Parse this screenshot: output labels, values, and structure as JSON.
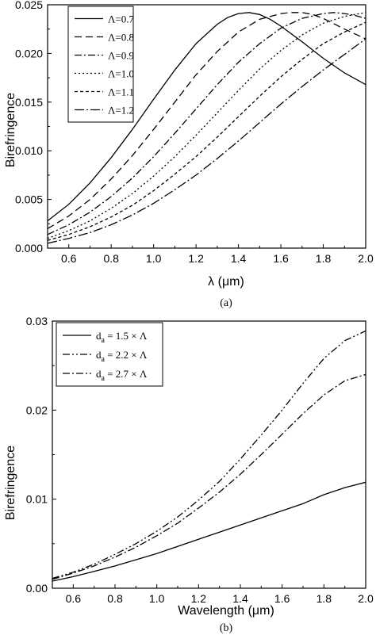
{
  "chart_data": [
    {
      "type": "line",
      "caption": "(a)",
      "xlabel": "λ (μm)",
      "ylabel": "Birefringence",
      "xlim": [
        0.5,
        2.0
      ],
      "ylim": [
        0.0,
        0.025
      ],
      "xticks": [
        "0.6",
        "0.8",
        "1.0",
        "1.2",
        "1.4",
        "1.6",
        "1.8",
        "2.0"
      ],
      "yticks": [
        "0.000",
        "0.005",
        "0.010",
        "0.015",
        "0.020",
        "0.025"
      ],
      "legend_position": "top-left",
      "series": [
        {
          "name": "Λ=0.7",
          "dash": "solid",
          "x": [
            0.5,
            0.6,
            0.7,
            0.8,
            0.9,
            1.0,
            1.1,
            1.2,
            1.3,
            1.35,
            1.4,
            1.45,
            1.5,
            1.55,
            1.6,
            1.7,
            1.8,
            1.9,
            2.0
          ],
          "y": [
            0.0028,
            0.0045,
            0.0067,
            0.0093,
            0.0122,
            0.0153,
            0.0183,
            0.021,
            0.023,
            0.0237,
            0.0241,
            0.0242,
            0.024,
            0.0235,
            0.0228,
            0.0212,
            0.0195,
            0.018,
            0.0168
          ]
        },
        {
          "name": "Λ=0.8",
          "dash": "dash",
          "x": [
            0.5,
            0.6,
            0.7,
            0.8,
            0.9,
            1.0,
            1.1,
            1.2,
            1.3,
            1.4,
            1.5,
            1.6,
            1.65,
            1.7,
            1.75,
            1.8,
            1.9,
            2.0
          ],
          "y": [
            0.002,
            0.0033,
            0.005,
            0.0071,
            0.0095,
            0.0122,
            0.015,
            0.0178,
            0.0202,
            0.0222,
            0.0235,
            0.0241,
            0.0242,
            0.0242,
            0.024,
            0.0236,
            0.0225,
            0.0215
          ]
        },
        {
          "name": "Λ=0.9",
          "dash": "dashdot",
          "x": [
            0.5,
            0.6,
            0.7,
            0.8,
            0.9,
            1.0,
            1.1,
            1.2,
            1.3,
            1.4,
            1.5,
            1.6,
            1.7,
            1.8,
            1.85,
            1.9,
            1.95,
            2.0
          ],
          "y": [
            0.0014,
            0.0024,
            0.0037,
            0.0053,
            0.0072,
            0.0094,
            0.0118,
            0.0143,
            0.0168,
            0.0191,
            0.021,
            0.0226,
            0.0236,
            0.0241,
            0.0242,
            0.0241,
            0.0239,
            0.0236
          ]
        },
        {
          "name": "Λ=1.0",
          "dash": "dot",
          "x": [
            0.5,
            0.6,
            0.7,
            0.8,
            0.9,
            1.0,
            1.1,
            1.2,
            1.3,
            1.4,
            1.5,
            1.6,
            1.7,
            1.8,
            1.9,
            2.0
          ],
          "y": [
            0.001,
            0.0018,
            0.0028,
            0.0041,
            0.0056,
            0.0074,
            0.0094,
            0.0116,
            0.0139,
            0.0162,
            0.0184,
            0.0203,
            0.0219,
            0.0231,
            0.0238,
            0.0242
          ]
        },
        {
          "name": "Λ=1.1",
          "dash": "shortdash",
          "x": [
            0.5,
            0.6,
            0.7,
            0.8,
            0.9,
            1.0,
            1.1,
            1.2,
            1.3,
            1.4,
            1.5,
            1.6,
            1.7,
            1.8,
            1.9,
            2.0
          ],
          "y": [
            0.0008,
            0.0014,
            0.0022,
            0.0032,
            0.0044,
            0.0059,
            0.0076,
            0.0094,
            0.0114,
            0.0135,
            0.0156,
            0.0176,
            0.0194,
            0.021,
            0.0222,
            0.0232
          ]
        },
        {
          "name": "Λ=1.2",
          "dash": "dashdotlong",
          "x": [
            0.5,
            0.6,
            0.7,
            0.8,
            0.9,
            1.0,
            1.1,
            1.2,
            1.3,
            1.4,
            1.5,
            1.6,
            1.7,
            1.8,
            1.9,
            2.0
          ],
          "y": [
            0.0005,
            0.001,
            0.0016,
            0.0024,
            0.0034,
            0.0046,
            0.006,
            0.0075,
            0.0092,
            0.011,
            0.0129,
            0.0148,
            0.0166,
            0.0183,
            0.0199,
            0.0215
          ]
        }
      ]
    },
    {
      "type": "line",
      "caption": "(b)",
      "xlabel": "Wavelength (μm)",
      "ylabel": "Birefringence",
      "xlim": [
        0.5,
        2.0
      ],
      "ylim": [
        0.0,
        0.03
      ],
      "xticks": [
        "0.6",
        "0.8",
        "1.0",
        "1.2",
        "1.4",
        "1.6",
        "1.8",
        "2.0"
      ],
      "yticks": [
        "0.00",
        "0.01",
        "0.02",
        "0.03"
      ],
      "legend_position": "top-left",
      "series": [
        {
          "name": "1.5 × Λ",
          "dash": "solid",
          "x": [
            0.5,
            0.6,
            0.7,
            0.8,
            0.9,
            1.0,
            1.1,
            1.2,
            1.3,
            1.4,
            1.5,
            1.6,
            1.7,
            1.8,
            1.9,
            2.0
          ],
          "y": [
            0.0008,
            0.0013,
            0.0019,
            0.0025,
            0.0032,
            0.0039,
            0.0047,
            0.0055,
            0.0063,
            0.0071,
            0.0079,
            0.0087,
            0.0095,
            0.0105,
            0.0113,
            0.0119
          ]
        },
        {
          "name": "2.2 × Λ",
          "dash": "dashdotdot",
          "x": [
            0.5,
            0.6,
            0.7,
            0.8,
            0.9,
            1.0,
            1.1,
            1.2,
            1.3,
            1.4,
            1.5,
            1.6,
            1.7,
            1.8,
            1.9,
            2.0
          ],
          "y": [
            0.0011,
            0.0018,
            0.0027,
            0.0038,
            0.005,
            0.0064,
            0.008,
            0.0099,
            0.012,
            0.0145,
            0.0172,
            0.02,
            0.023,
            0.0258,
            0.0278,
            0.0289
          ]
        },
        {
          "name": "2.7 × Λ",
          "dash": "dashdot",
          "x": [
            0.5,
            0.6,
            0.7,
            0.8,
            0.9,
            1.0,
            1.1,
            1.2,
            1.3,
            1.4,
            1.5,
            1.6,
            1.7,
            1.8,
            1.9,
            2.0
          ],
          "y": [
            0.001,
            0.0017,
            0.0025,
            0.0035,
            0.0046,
            0.0059,
            0.0073,
            0.009,
            0.0108,
            0.0128,
            0.015,
            0.0173,
            0.0196,
            0.0217,
            0.0233,
            0.024
          ]
        }
      ]
    }
  ]
}
